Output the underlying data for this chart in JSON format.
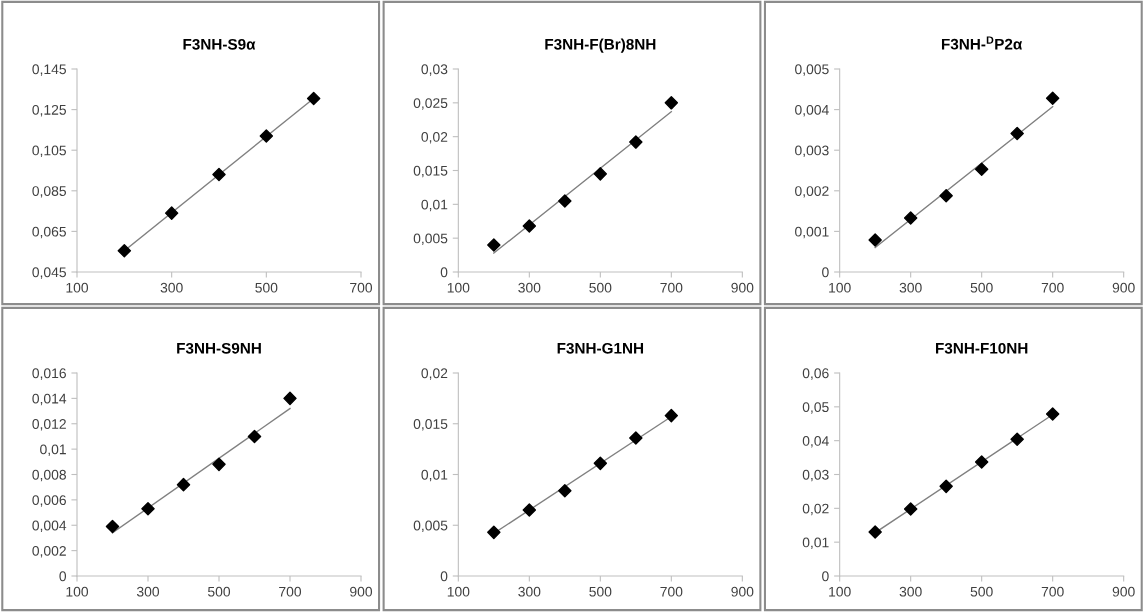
{
  "chart_data": [
    {
      "type": "scatter",
      "title": "F3NH-S9α",
      "x": [
        200,
        300,
        400,
        500,
        600
      ],
      "xlim": [
        100,
        700
      ],
      "xticks": [
        100,
        300,
        500,
        700
      ],
      "ylim": [
        0.045,
        0.145
      ],
      "yticks": [
        {
          "value": 0.045,
          "label": "0,045"
        },
        {
          "value": 0.065,
          "label": "0,065"
        },
        {
          "value": 0.085,
          "label": "0,085"
        },
        {
          "value": 0.105,
          "label": "0,105"
        },
        {
          "value": 0.125,
          "label": "0,125"
        },
        {
          "value": 0.145,
          "label": "0,145"
        }
      ],
      "series": [
        {
          "color": "#000000",
          "marker": "diamond",
          "values": [
            0.0555,
            0.074,
            0.093,
            0.112,
            0.1305
          ]
        },
        {
          "type": "line",
          "color": "#808080",
          "marker": "none",
          "x": [
            200,
            600
          ],
          "values": [
            0.0555,
            0.1305
          ]
        }
      ]
    },
    {
      "type": "scatter",
      "title": "F3NH-F(Br)8NH",
      "x": [
        200,
        300,
        400,
        500,
        600,
        700
      ],
      "xlim": [
        100,
        900
      ],
      "xticks": [
        100,
        300,
        500,
        700,
        900
      ],
      "ylim": [
        0,
        0.03
      ],
      "yticks": [
        0,
        {
          "value": 0.005,
          "label": "0,005"
        },
        {
          "value": 0.01,
          "label": "0,01"
        },
        {
          "value": 0.015,
          "label": "0,015"
        },
        {
          "value": 0.02,
          "label": "0,02"
        },
        {
          "value": 0.025,
          "label": "0,025"
        },
        {
          "value": 0.03,
          "label": "0,03"
        }
      ],
      "series": [
        {
          "color": "#000000",
          "marker": "diamond",
          "values": [
            0.004,
            0.0068,
            0.0105,
            0.0145,
            0.0192,
            0.025
          ]
        },
        {
          "type": "line",
          "color": "#808080",
          "marker": "none",
          "x": [
            200,
            700
          ],
          "values": [
            0.0028,
            0.0237
          ]
        }
      ]
    },
    {
      "type": "scatter",
      "title": "F3NH-$^{D}$P2α",
      "x": [
        200,
        300,
        400,
        500,
        600,
        700
      ],
      "xlim": [
        100,
        900
      ],
      "xticks": [
        100,
        300,
        500,
        700,
        900
      ],
      "ylim": [
        0,
        0.005
      ],
      "yticks": [
        0,
        {
          "value": 0.001,
          "label": "0,001"
        },
        {
          "value": 0.002,
          "label": "0,002"
        },
        {
          "value": 0.003,
          "label": "0,003"
        },
        {
          "value": 0.004,
          "label": "0,004"
        },
        {
          "value": 0.005,
          "label": "0,005"
        }
      ],
      "series": [
        {
          "color": "#000000",
          "marker": "diamond",
          "values": [
            0.00079,
            0.00133,
            0.00188,
            0.00253,
            0.00341,
            0.00428
          ]
        },
        {
          "type": "line",
          "color": "#808080",
          "marker": "none",
          "x": [
            200,
            700
          ],
          "values": [
            0.0006,
            0.00407
          ]
        }
      ]
    },
    {
      "type": "scatter",
      "title": "F3NH-S9NH",
      "x": [
        200,
        300,
        400,
        500,
        600,
        700
      ],
      "xlim": [
        100,
        900
      ],
      "xticks": [
        100,
        300,
        500,
        700,
        900
      ],
      "ylim": [
        0,
        0.016
      ],
      "yticks": [
        0,
        {
          "value": 0.002,
          "label": "0,002"
        },
        {
          "value": 0.004,
          "label": "0,004"
        },
        {
          "value": 0.006,
          "label": "0,006"
        },
        {
          "value": 0.008,
          "label": "0,008"
        },
        {
          "value": 0.01,
          "label": "0,01"
        },
        {
          "value": 0.012,
          "label": "0,012"
        },
        {
          "value": 0.014,
          "label": "0,014"
        },
        {
          "value": 0.016,
          "label": "0,016"
        }
      ],
      "series": [
        {
          "color": "#000000",
          "marker": "diamond",
          "values": [
            0.0039,
            0.0053,
            0.0072,
            0.0088,
            0.011,
            0.014
          ]
        },
        {
          "type": "line",
          "color": "#808080",
          "marker": "none",
          "x": [
            200,
            700
          ],
          "values": [
            0.0034,
            0.0132
          ]
        }
      ]
    },
    {
      "type": "scatter",
      "title": "F3NH-G1NH",
      "x": [
        200,
        300,
        400,
        500,
        600,
        700
      ],
      "xlim": [
        100,
        900
      ],
      "xticks": [
        100,
        300,
        500,
        700,
        900
      ],
      "ylim": [
        0,
        0.02
      ],
      "yticks": [
        0,
        {
          "value": 0.005,
          "label": "0,005"
        },
        {
          "value": 0.01,
          "label": "0,01"
        },
        {
          "value": 0.015,
          "label": "0,015"
        },
        {
          "value": 0.02,
          "label": "0,02"
        }
      ],
      "series": [
        {
          "color": "#000000",
          "marker": "diamond",
          "values": [
            0.0043,
            0.0065,
            0.0084,
            0.0111,
            0.0136,
            0.0158
          ]
        },
        {
          "type": "line",
          "color": "#808080",
          "marker": "none",
          "x": [
            200,
            700
          ],
          "values": [
            0.0042,
            0.0157
          ]
        }
      ]
    },
    {
      "type": "scatter",
      "title": "F3NH-F10NH",
      "x": [
        200,
        300,
        400,
        500,
        600,
        700
      ],
      "xlim": [
        100,
        900
      ],
      "xticks": [
        100,
        300,
        500,
        700,
        900
      ],
      "ylim": [
        0,
        0.06
      ],
      "yticks": [
        0,
        {
          "value": 0.01,
          "label": "0,01"
        },
        {
          "value": 0.02,
          "label": "0,02"
        },
        {
          "value": 0.03,
          "label": "0,03"
        },
        {
          "value": 0.04,
          "label": "0,04"
        },
        {
          "value": 0.05,
          "label": "0,05"
        },
        {
          "value": 0.06,
          "label": "0,06"
        }
      ],
      "series": [
        {
          "color": "#000000",
          "marker": "diamond",
          "values": [
            0.013,
            0.0198,
            0.0265,
            0.0337,
            0.0404,
            0.0479
          ]
        },
        {
          "type": "line",
          "color": "#808080",
          "marker": "none",
          "x": [
            200,
            700
          ],
          "values": [
            0.0128,
            0.0477
          ]
        }
      ]
    }
  ]
}
